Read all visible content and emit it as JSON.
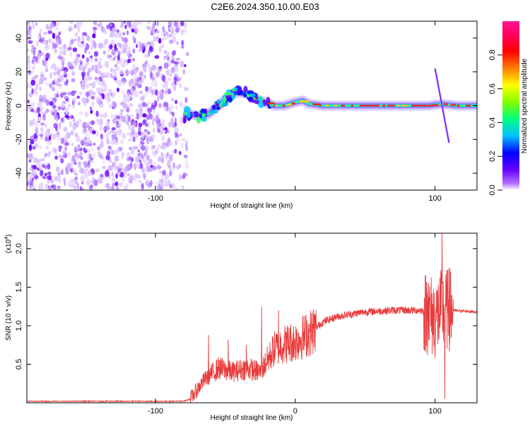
{
  "title": "C2E6.2024.350.10.00.E03",
  "chart_data": [
    {
      "type": "heatmap",
      "xlabel": "Height of straight line (km)",
      "ylabel": "Frequency (Hz)",
      "xlim": [
        -192,
        130
      ],
      "ylim": [
        -50,
        50
      ],
      "x_ticks": [
        -100,
        0,
        100
      ],
      "x_tick_labels": [
        "-100",
        "",
        "100"
      ],
      "y_ticks": [
        -40,
        -20,
        0,
        20,
        40
      ],
      "y_tick_labels": [
        "-40",
        "-20",
        "0",
        "20",
        "40"
      ],
      "colorbar": {
        "label": "Normalized spectral amplitude",
        "range": [
          0,
          1
        ],
        "ticks": [
          0.0,
          0.2,
          0.4,
          0.6,
          0.8
        ],
        "tick_labels": [
          "0.0",
          "0.2",
          "0.4",
          "0.6",
          "0.8"
        ],
        "colors": [
          "#ffffff",
          "#b06cff",
          "#6a00ff",
          "#0000ff",
          "#00c0ff",
          "#00ff80",
          "#80ff00",
          "#ffff00",
          "#ff8000",
          "#ff0000",
          "#ff0060",
          "#ff1493"
        ]
      },
      "noise_region_x": [
        -192,
        -77
      ],
      "ridge": [
        {
          "x": -80,
          "y": -4
        },
        {
          "x": -70,
          "y": -6
        },
        {
          "x": -62,
          "y": -5
        },
        {
          "x": -55,
          "y": 0
        },
        {
          "x": -48,
          "y": 5
        },
        {
          "x": -42,
          "y": 8
        },
        {
          "x": -35,
          "y": 7
        },
        {
          "x": -28,
          "y": 4
        },
        {
          "x": -22,
          "y": 2
        },
        {
          "x": -15,
          "y": 0
        },
        {
          "x": -8,
          "y": 0
        },
        {
          "x": 0,
          "y": 2
        },
        {
          "x": 5,
          "y": 3
        },
        {
          "x": 10,
          "y": 1
        },
        {
          "x": 20,
          "y": 0
        },
        {
          "x": 60,
          "y": 0
        },
        {
          "x": 95,
          "y": 0
        },
        {
          "x": 105,
          "y": 1
        },
        {
          "x": 115,
          "y": 0
        },
        {
          "x": 130,
          "y": 0
        }
      ],
      "streak": [
        {
          "x": 100,
          "y": 22
        },
        {
          "x": 110,
          "y": -22
        }
      ]
    },
    {
      "type": "line",
      "xlabel": "Height of straight line (km)",
      "ylabel": "SNR (10 * v/v)",
      "y_scale_label": "(x10",
      "y_scale_exp": "4",
      "xlim": [
        -192,
        130
      ],
      "ylim": [
        0,
        2.2
      ],
      "x_ticks": [
        -100,
        0,
        100
      ],
      "x_tick_labels": [
        "-100",
        "0",
        "100"
      ],
      "y_ticks": [
        0.5,
        1.0,
        1.5,
        2.0
      ],
      "y_tick_labels": [
        "0.5",
        "1.0",
        "1.5",
        "2.0"
      ],
      "color": "#e83c3c",
      "envelope": [
        {
          "x": -192,
          "y": 0.02
        },
        {
          "x": -80,
          "y": 0.02
        },
        {
          "x": -75,
          "y": 0.05
        },
        {
          "x": -65,
          "y": 0.3
        },
        {
          "x": -55,
          "y": 0.45
        },
        {
          "x": -45,
          "y": 0.4
        },
        {
          "x": -35,
          "y": 0.45
        },
        {
          "x": -25,
          "y": 0.4
        },
        {
          "x": -15,
          "y": 0.7
        },
        {
          "x": -10,
          "y": 0.75
        },
        {
          "x": 0,
          "y": 0.8
        },
        {
          "x": 10,
          "y": 0.9
        },
        {
          "x": 20,
          "y": 1.05
        },
        {
          "x": 30,
          "y": 1.12
        },
        {
          "x": 50,
          "y": 1.18
        },
        {
          "x": 70,
          "y": 1.2
        },
        {
          "x": 90,
          "y": 1.2
        },
        {
          "x": 95,
          "y": 1.15
        },
        {
          "x": 100,
          "y": 1.1
        },
        {
          "x": 105,
          "y": 1.2
        },
        {
          "x": 110,
          "y": 1.2
        },
        {
          "x": 130,
          "y": 1.18
        }
      ],
      "spikes": [
        {
          "x": -62,
          "y": 0.88
        },
        {
          "x": -48,
          "y": 0.82
        },
        {
          "x": -35,
          "y": 0.75
        },
        {
          "x": -24,
          "y": 1.25
        },
        {
          "x": -12,
          "y": 1.2
        },
        {
          "x": 95,
          "y": 1.55
        },
        {
          "x": 105,
          "y": 2.2
        },
        {
          "x": 107,
          "y": 0.05
        },
        {
          "x": 110,
          "y": 1.75
        }
      ]
    }
  ]
}
